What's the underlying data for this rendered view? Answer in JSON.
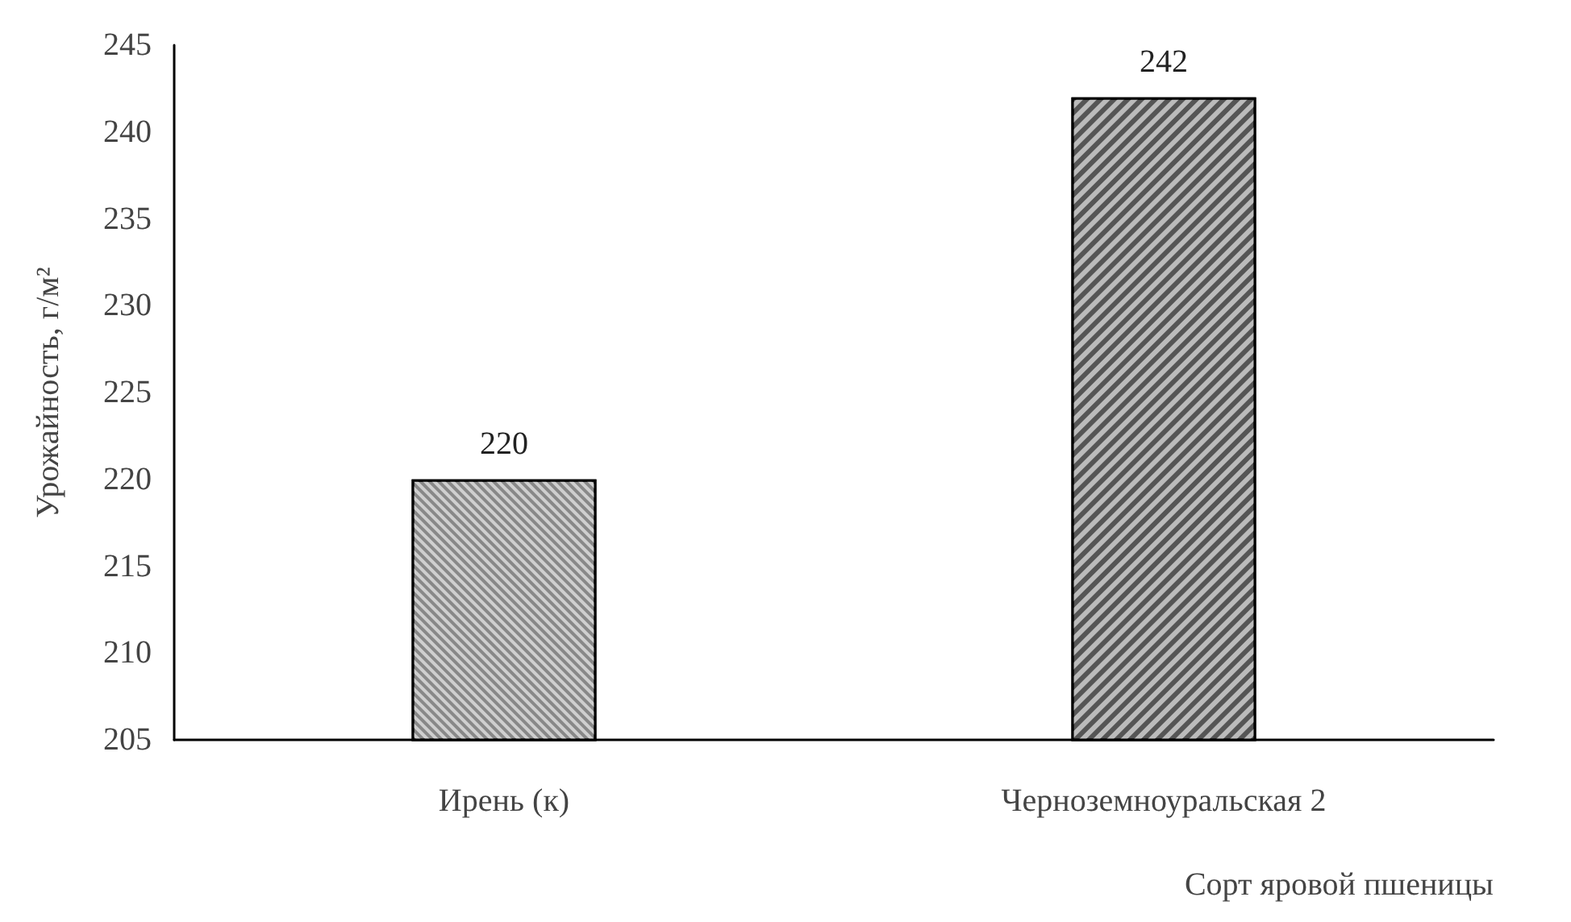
{
  "chart_data": {
    "type": "bar",
    "categories": [
      "Ирень (к)",
      "Черноземноуральская 2"
    ],
    "values": [
      220,
      242
    ],
    "colors": [
      "#888888",
      "#555555"
    ],
    "ylabel": "Урожайность, г/м²",
    "xlabel": "Сорт яровой пшеницы",
    "ylim": [
      205,
      245
    ],
    "yticks": [
      205,
      210,
      215,
      220,
      225,
      230,
      235,
      240,
      245
    ],
    "data_labels": true,
    "grid": false
  }
}
